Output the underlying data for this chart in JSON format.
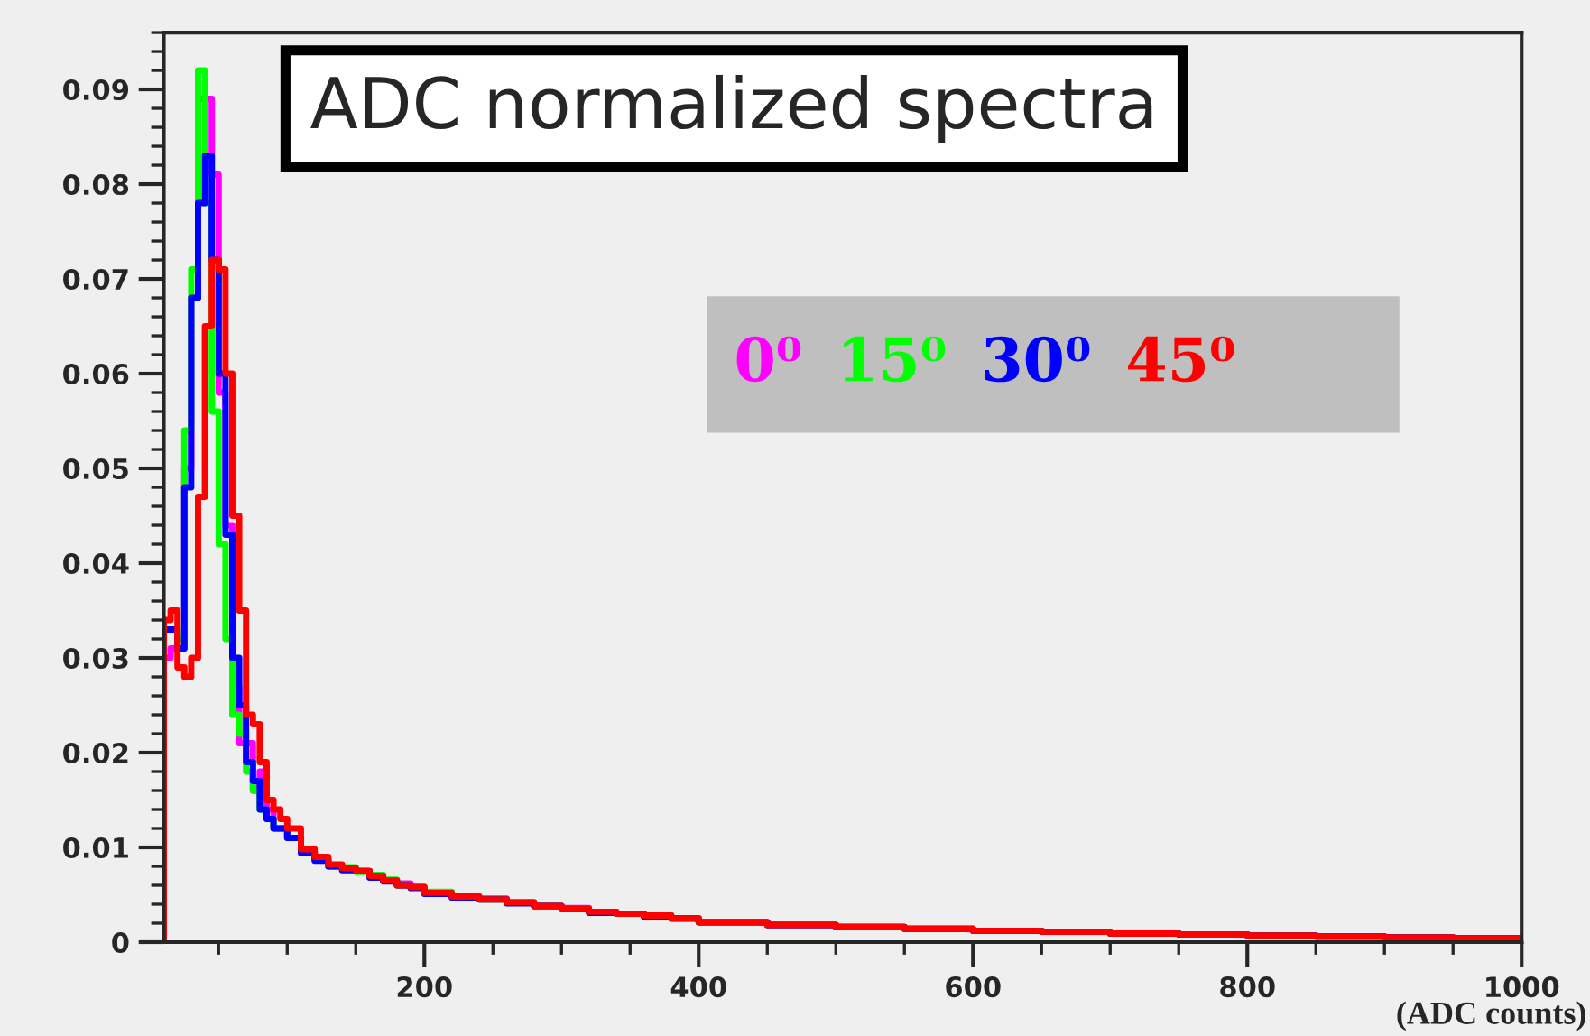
{
  "chart_data": {
    "type": "histogram",
    "title": "ADC normalized spectra",
    "xlabel": "(ADC counts)",
    "bins": [
      10,
      15,
      20,
      25,
      30,
      35,
      40,
      45,
      50,
      55,
      60,
      65,
      70,
      75,
      80,
      85,
      90,
      95,
      100,
      110,
      120,
      130,
      140,
      150,
      160,
      170,
      180,
      190,
      200,
      220,
      240,
      260,
      280,
      300,
      320,
      340,
      360,
      380,
      400,
      450,
      500,
      550,
      600,
      650,
      700,
      750,
      800,
      850,
      900,
      950,
      1000
    ],
    "series": [
      {
        "name": "0⁰",
        "color": "#ff00ff",
        "values": [
          0.03,
          0.031,
          0.031,
          0.05,
          0.068,
          0.089,
          0.089,
          0.081,
          0.058,
          0.044,
          0.027,
          0.021,
          0.021,
          0.016,
          0.018,
          0.014,
          0.012,
          0.012,
          0.011,
          0.0095,
          0.0088,
          0.008,
          0.0078,
          0.0075,
          0.007,
          0.0065,
          0.0062,
          0.0058,
          0.0052,
          0.0048,
          0.0046,
          0.0042,
          0.0038,
          0.0036,
          0.0032,
          0.003,
          0.0028,
          0.0025,
          0.0021,
          0.0018,
          0.0016,
          0.0014,
          0.0012,
          0.0011,
          0.0009,
          0.0008,
          0.0007,
          0.0006,
          0.0005,
          0.0004
        ]
      },
      {
        "name": "15⁰",
        "color": "#00ff00",
        "values": [
          0.033,
          0.033,
          0.032,
          0.054,
          0.071,
          0.092,
          0.078,
          0.056,
          0.042,
          0.032,
          0.024,
          0.022,
          0.018,
          0.016,
          0.014,
          0.013,
          0.012,
          0.012,
          0.011,
          0.0095,
          0.0087,
          0.008,
          0.0079,
          0.0074,
          0.0071,
          0.0066,
          0.006,
          0.0058,
          0.0053,
          0.0048,
          0.0045,
          0.0042,
          0.0038,
          0.0035,
          0.0032,
          0.003,
          0.0028,
          0.0025,
          0.0021,
          0.0018,
          0.0016,
          0.0014,
          0.0012,
          0.0011,
          0.0009,
          0.0008,
          0.0007,
          0.0006,
          0.0005,
          0.0004
        ]
      },
      {
        "name": "30⁰",
        "color": "#0000ff",
        "values": [
          0.033,
          0.033,
          0.031,
          0.048,
          0.068,
          0.078,
          0.083,
          0.072,
          0.06,
          0.043,
          0.03,
          0.025,
          0.019,
          0.017,
          0.014,
          0.013,
          0.012,
          0.012,
          0.011,
          0.0094,
          0.0086,
          0.008,
          0.0076,
          0.0075,
          0.0068,
          0.0064,
          0.006,
          0.0057,
          0.0051,
          0.0047,
          0.0045,
          0.0041,
          0.0038,
          0.0035,
          0.0031,
          0.003,
          0.0027,
          0.0025,
          0.0021,
          0.0018,
          0.0016,
          0.0014,
          0.0012,
          0.0011,
          0.0009,
          0.0008,
          0.0007,
          0.0006,
          0.0005,
          0.0004
        ]
      },
      {
        "name": "45⁰",
        "color": "#ff0000",
        "values": [
          0.034,
          0.035,
          0.029,
          0.028,
          0.03,
          0.047,
          0.065,
          0.072,
          0.071,
          0.06,
          0.045,
          0.035,
          0.024,
          0.023,
          0.019,
          0.015,
          0.014,
          0.013,
          0.012,
          0.0098,
          0.009,
          0.0082,
          0.0078,
          0.0075,
          0.007,
          0.0065,
          0.006,
          0.0058,
          0.0052,
          0.0048,
          0.0045,
          0.0042,
          0.0038,
          0.0035,
          0.0032,
          0.003,
          0.0028,
          0.0025,
          0.0021,
          0.0018,
          0.0016,
          0.0014,
          0.0012,
          0.0011,
          0.0009,
          0.0008,
          0.0007,
          0.0006,
          0.0005,
          0.0004
        ]
      }
    ],
    "xlim": [
      10,
      1000
    ],
    "ylim": [
      0,
      0.096
    ],
    "xticks": [
      200,
      400,
      600,
      800,
      1000
    ],
    "yticks": [
      0,
      0.01,
      0.02,
      0.03,
      0.04,
      0.05,
      0.06,
      0.07,
      0.08,
      0.09
    ],
    "legend": "right",
    "grid": false
  }
}
